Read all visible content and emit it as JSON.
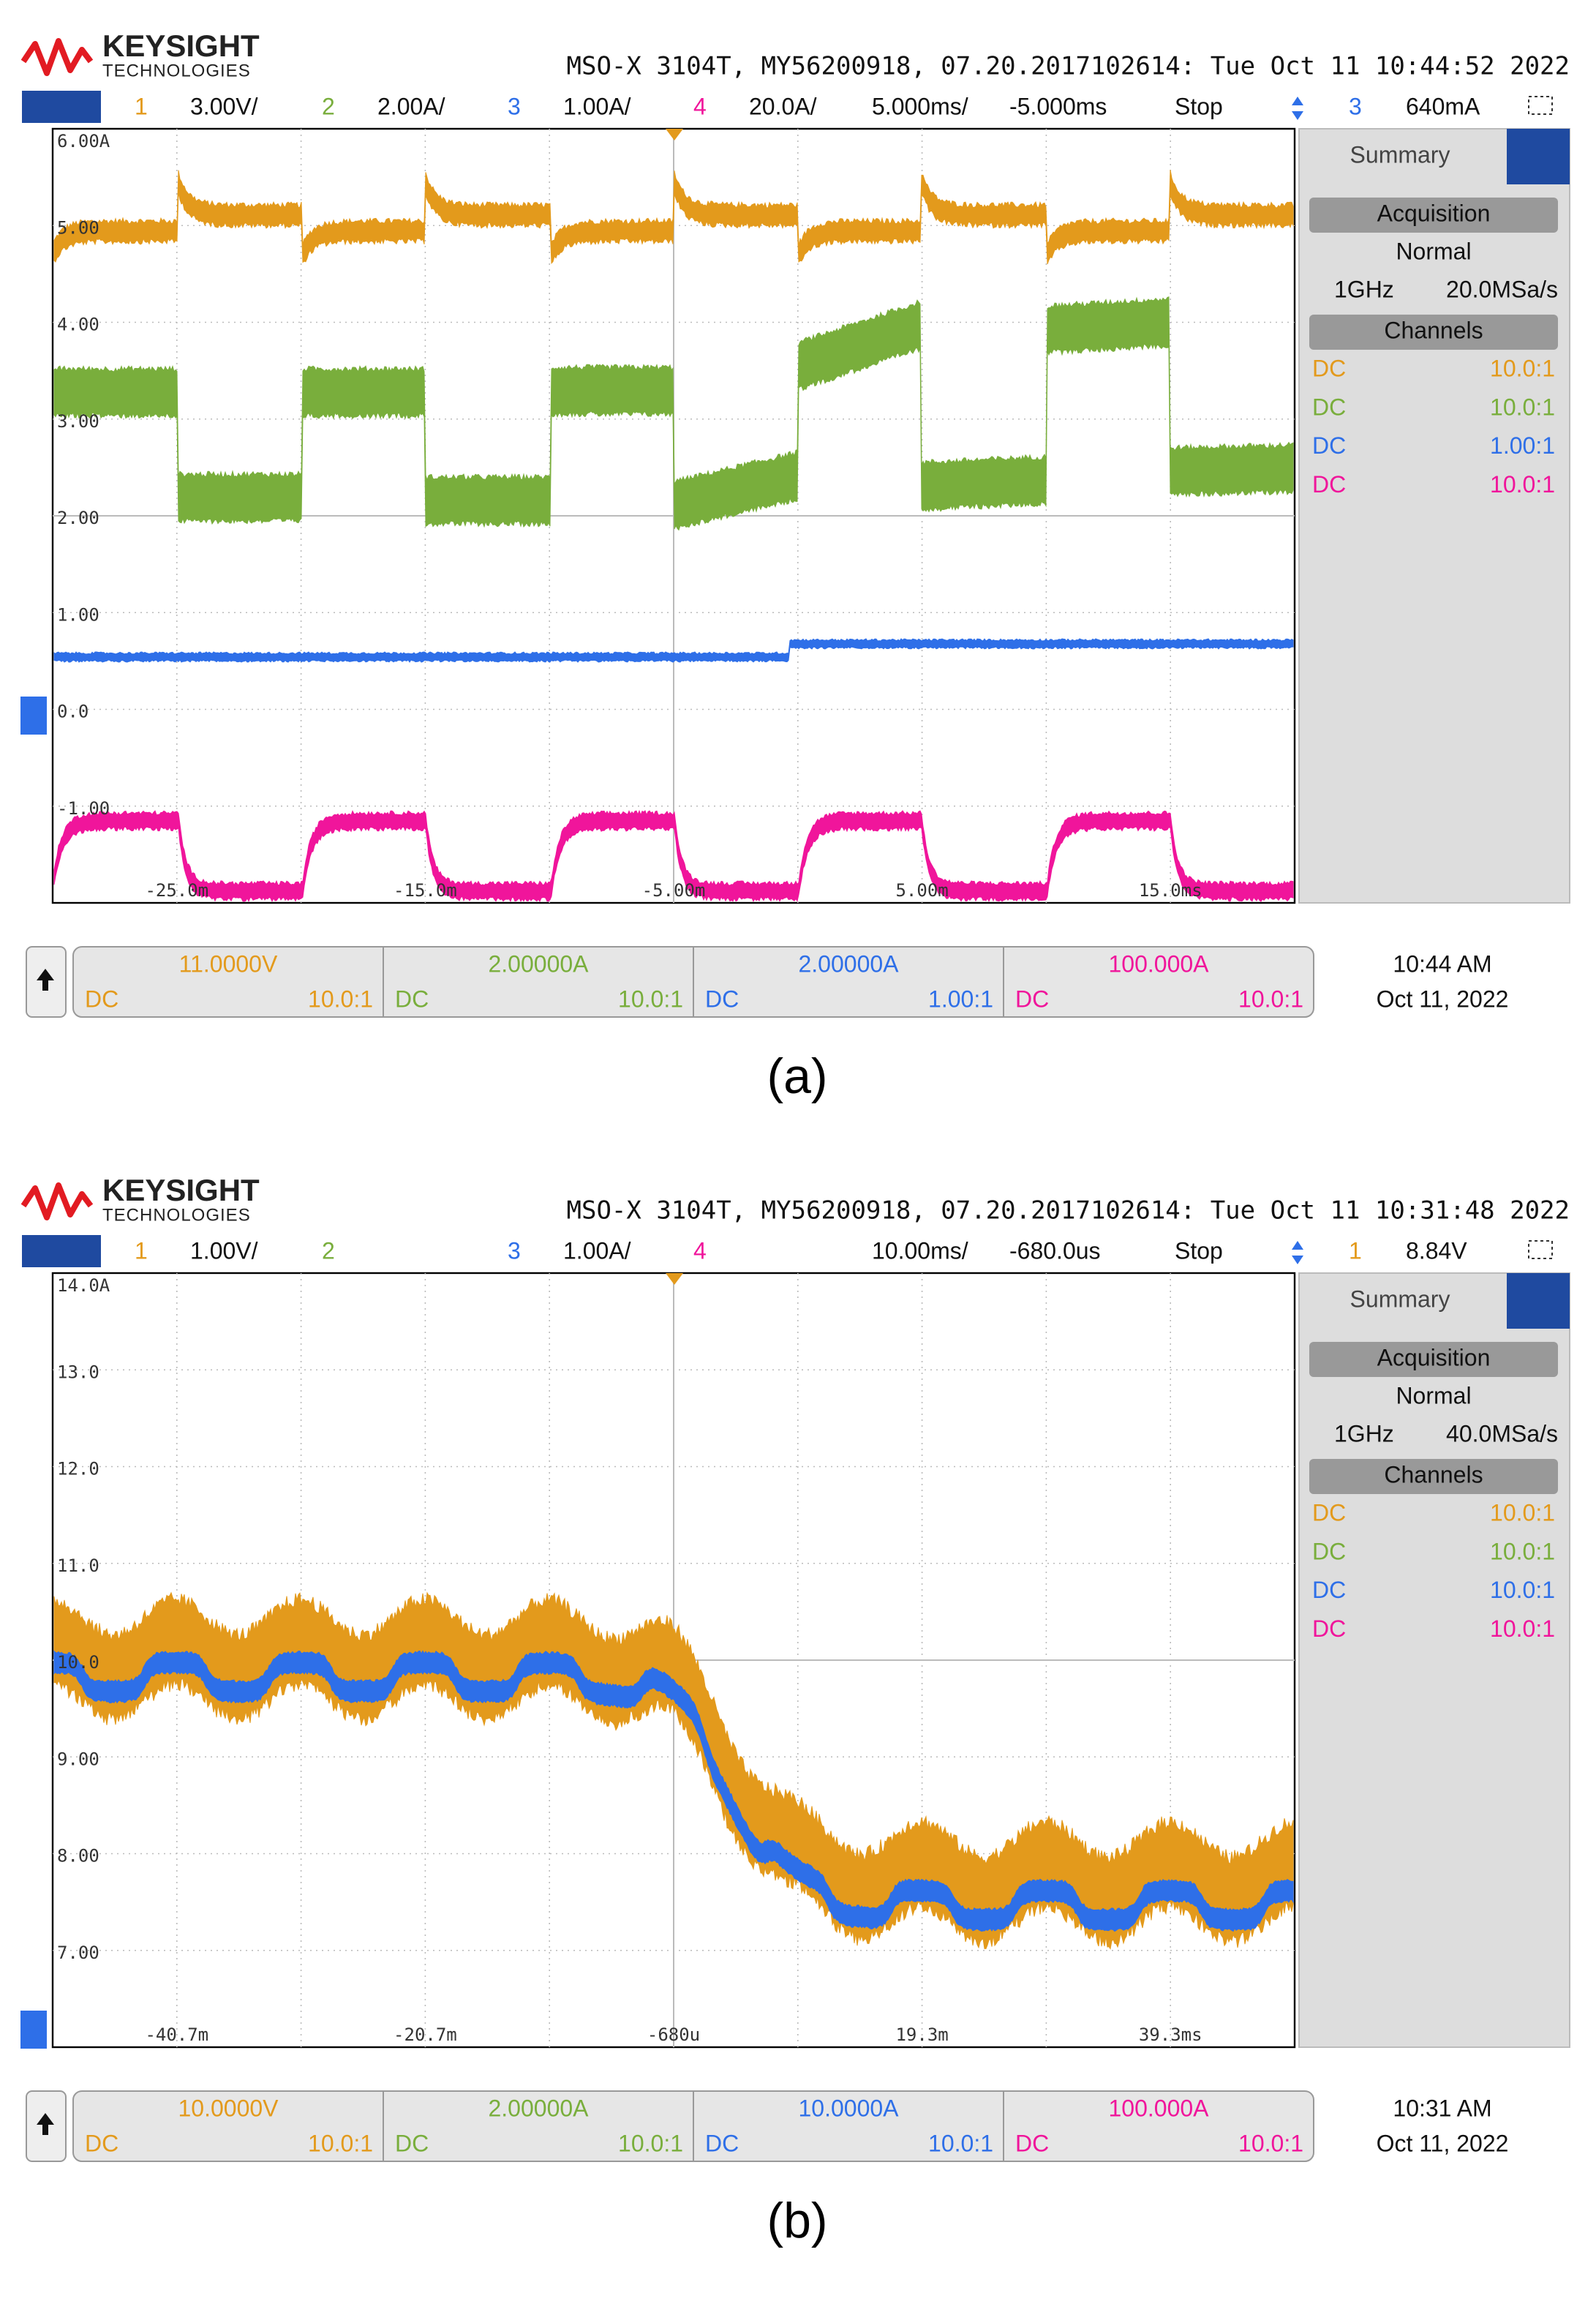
{
  "panels": [
    {
      "brand": "KEYSIGHT",
      "brand_sub": "TECHNOLOGIES",
      "header": "MSO-X 3104T, MY56200918, 07.20.2017102614: Tue Oct 11 10:44:52 2022",
      "channels": [
        {
          "num": "1",
          "scale": "3.00V/",
          "color": "#e39a1c"
        },
        {
          "num": "2",
          "scale": "2.00A/",
          "color": "#79ae3c"
        },
        {
          "num": "3",
          "scale": "1.00A/",
          "color": "#2e6fe8"
        },
        {
          "num": "4",
          "scale": "20.0A/",
          "color": "#f0159b"
        }
      ],
      "timebase": "5.000ms/",
      "delay": "-5.000ms",
      "run_state": "Stop",
      "trigger_source": "3",
      "trigger_level": "640mA",
      "y_labels": [
        "6.00A",
        "5.00",
        "4.00",
        "3.00",
        "2.00",
        "1.00",
        "0.0",
        "-1.00"
      ],
      "x_labels": [
        "-25.0m",
        "-15.0m",
        "-5.00m",
        "5.00m",
        "15.0ms"
      ],
      "sidebar": {
        "summary": "Summary",
        "acquisition": "Acquisition",
        "mode": "Normal",
        "bandwidth": "1GHz",
        "rate": "20.0MSa/s",
        "channels": "Channels",
        "rows": [
          {
            "coupling": "DC",
            "ratio": "10.0:1",
            "color": "#e39a1c"
          },
          {
            "coupling": "DC",
            "ratio": "10.0:1",
            "color": "#79ae3c"
          },
          {
            "coupling": "DC",
            "ratio": "1.00:1",
            "color": "#2e6fe8"
          },
          {
            "coupling": "DC",
            "ratio": "10.0:1",
            "color": "#f0159b"
          }
        ]
      },
      "bottom": [
        {
          "value": "11.0000V",
          "coupling": "DC",
          "ratio": "10.0:1",
          "color": "#e39a1c"
        },
        {
          "value": "2.00000A",
          "coupling": "DC",
          "ratio": "10.0:1",
          "color": "#79ae3c"
        },
        {
          "value": "2.00000A",
          "coupling": "DC",
          "ratio": "1.00:1",
          "color": "#2e6fe8"
        },
        {
          "value": "100.000A",
          "coupling": "DC",
          "ratio": "10.0:1",
          "color": "#f0159b"
        }
      ],
      "time": "10:44 AM",
      "date": "Oct 11, 2022",
      "caption": "(a)"
    },
    {
      "brand": "KEYSIGHT",
      "brand_sub": "TECHNOLOGIES",
      "header": "MSO-X 3104T, MY56200918, 07.20.2017102614: Tue Oct 11 10:31:48 2022",
      "channels": [
        {
          "num": "1",
          "scale": "1.00V/",
          "color": "#e39a1c"
        },
        {
          "num": "2",
          "color": "#79ae3c"
        },
        {
          "num": "3",
          "scale": "1.00A/",
          "color": "#2e6fe8"
        },
        {
          "num": "4",
          "color": "#f0159b"
        }
      ],
      "timebase": "10.00ms/",
      "delay": "-680.0us",
      "run_state": "Stop",
      "trigger_source": "1",
      "trigger_level": "8.84V",
      "y_labels": [
        "14.0A",
        "13.0",
        "12.0",
        "11.0",
        "10.0",
        "9.00",
        "8.00",
        "7.00"
      ],
      "x_labels": [
        "-40.7m",
        "-20.7m",
        "-680u",
        "19.3m",
        "39.3ms"
      ],
      "sidebar": {
        "summary": "Summary",
        "acquisition": "Acquisition",
        "mode": "Normal",
        "bandwidth": "1GHz",
        "rate": "40.0MSa/s",
        "channels": "Channels",
        "rows": [
          {
            "coupling": "DC",
            "ratio": "10.0:1",
            "color": "#e39a1c"
          },
          {
            "coupling": "DC",
            "ratio": "10.0:1",
            "color": "#79ae3c"
          },
          {
            "coupling": "DC",
            "ratio": "10.0:1",
            "color": "#2e6fe8"
          },
          {
            "coupling": "DC",
            "ratio": "10.0:1",
            "color": "#f0159b"
          }
        ]
      },
      "bottom": [
        {
          "value": "10.0000V",
          "coupling": "DC",
          "ratio": "10.0:1",
          "color": "#e39a1c"
        },
        {
          "value": "2.00000A",
          "coupling": "DC",
          "ratio": "10.0:1",
          "color": "#79ae3c"
        },
        {
          "value": "10.0000A",
          "coupling": "DC",
          "ratio": "10.0:1",
          "color": "#2e6fe8"
        },
        {
          "value": "100.000A",
          "coupling": "DC",
          "ratio": "10.0:1",
          "color": "#f0159b"
        }
      ],
      "time": "10:31 AM",
      "date": "Oct 11, 2022",
      "caption": "(b)"
    }
  ]
}
